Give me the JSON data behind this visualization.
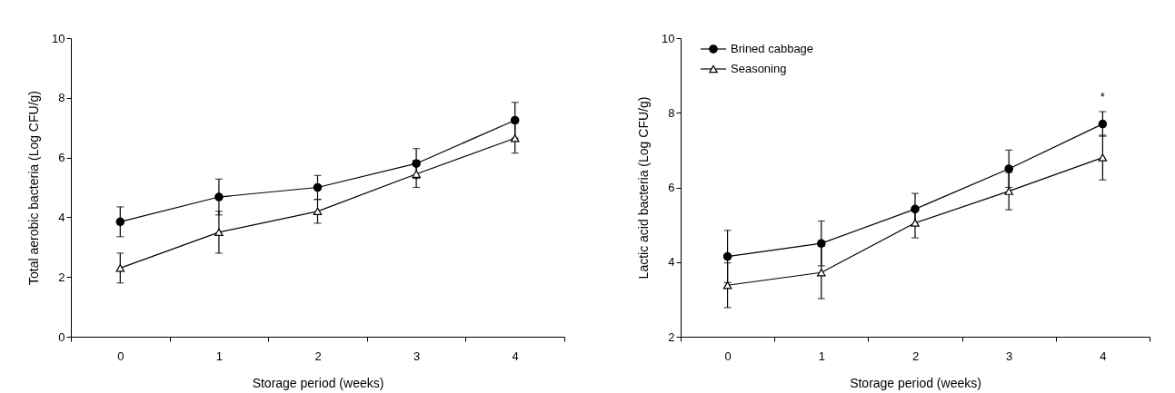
{
  "chart_data": [
    {
      "type": "line",
      "xlabel": "Storage period (weeks)",
      "ylabel": "Total aerobic bacteria (Log CFU/g)",
      "categories": [
        "0",
        "1",
        "2",
        "3",
        "4"
      ],
      "ylim": [
        0,
        10
      ],
      "yticks": [
        0,
        2,
        4,
        6,
        8,
        10
      ],
      "grid": false,
      "legend": false,
      "series": [
        {
          "color": "#000000",
          "marker": "circle",
          "values": [
            3.85,
            4.68,
            5.0,
            5.8,
            7.25
          ],
          "errors": [
            0.5,
            0.6,
            0.4,
            0.5,
            0.6
          ]
        },
        {
          "color": "#000000",
          "marker": "triangle",
          "values": [
            2.3,
            3.5,
            4.2,
            5.45,
            6.65
          ],
          "errors": [
            0.5,
            0.7,
            0.4,
            0.45,
            0.5
          ]
        }
      ]
    },
    {
      "type": "line",
      "xlabel": "Storage period (weeks)",
      "ylabel": "Lactic acid bacteria (Log CFU/g)",
      "categories": [
        "0",
        "1",
        "2",
        "3",
        "4"
      ],
      "ylim": [
        2,
        10
      ],
      "yticks": [
        2,
        4,
        6,
        8,
        10
      ],
      "grid": false,
      "legend": "top left",
      "annotations": [
        "*"
      ],
      "series": [
        {
          "name": "Brined cabbage",
          "color": "#000000",
          "marker": "circle",
          "values": [
            4.15,
            4.5,
            5.42,
            6.5,
            7.7
          ],
          "errors": [
            0.7,
            0.6,
            0.42,
            0.5,
            0.33
          ]
        },
        {
          "name": "Seasoning",
          "color": "#000000",
          "marker": "triangle",
          "values": [
            3.38,
            3.72,
            5.05,
            5.9,
            6.8
          ],
          "errors": [
            0.6,
            0.7,
            0.4,
            0.5,
            0.6
          ]
        }
      ]
    }
  ]
}
